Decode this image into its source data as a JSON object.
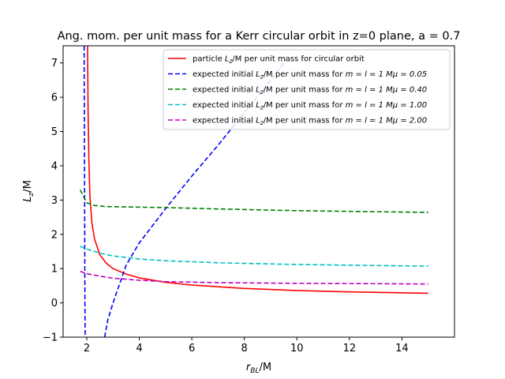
{
  "chart_data": {
    "type": "line",
    "title": "Ang. mom. per unit mass for a Kerr circular orbit in z=0 plane, a = 0.7",
    "xlabel": "r_BL/M",
    "ylabel": "L_z/M",
    "xlim": [
      1.1,
      16.0
    ],
    "ylim": [
      -1.0,
      7.5
    ],
    "xticks": [
      2,
      4,
      6,
      8,
      10,
      12,
      14
    ],
    "yticks": [
      -1,
      0,
      1,
      2,
      3,
      4,
      5,
      6,
      7
    ],
    "grid": false,
    "legend_position": "upper right",
    "series": [
      {
        "name": "particle L_z/M per unit mass for circular orbit",
        "color": "#ff0000",
        "style": "solid",
        "x": [
          2.03,
          2.05,
          2.08,
          2.12,
          2.2,
          2.3,
          2.5,
          2.75,
          3.0,
          3.5,
          4.0,
          5.0,
          6.0,
          8.0,
          10.0,
          12.0,
          15.0
        ],
        "y": [
          7.5,
          5.6,
          4.2,
          3.1,
          2.3,
          1.85,
          1.4,
          1.15,
          1.0,
          0.84,
          0.73,
          0.6,
          0.52,
          0.42,
          0.36,
          0.32,
          0.28
        ]
      },
      {
        "name": "expected initial L_z/M per unit mass for m = l = 1 Mμ = 0.05",
        "color": "#0000ff",
        "style": "dashed",
        "x": [
          1.9,
          1.91,
          1.92,
          1.93,
          1.94,
          null,
          2.68,
          2.8,
          3.0,
          3.5,
          4.0,
          5.0,
          6.0,
          7.0,
          8.0,
          9.0,
          9.6
        ],
        "y": [
          7.5,
          5.0,
          2.5,
          0.0,
          -1.0,
          null,
          -1.0,
          -0.5,
          0.0,
          1.1,
          1.75,
          2.75,
          3.7,
          4.6,
          5.55,
          6.5,
          7.1
        ]
      },
      {
        "name": "expected initial L_z/M per unit mass for m = l = 1 Mμ = 0.40",
        "color": "#008000",
        "style": "dashed",
        "x": [
          1.75,
          2.0,
          2.3,
          2.7,
          3.5,
          5.0,
          7.0,
          10.0,
          13.0,
          15.0
        ],
        "y": [
          3.3,
          2.92,
          2.84,
          2.81,
          2.8,
          2.78,
          2.74,
          2.69,
          2.66,
          2.64
        ]
      },
      {
        "name": "expected initial L_z/M per unit mass for m = l = 1 Mμ = 1.00",
        "color": "#00bfbf",
        "style": "dashed",
        "x": [
          1.75,
          2.0,
          2.5,
          3.0,
          4.0,
          5.0,
          7.0,
          10.0,
          13.0,
          15.0
        ],
        "y": [
          1.65,
          1.57,
          1.45,
          1.37,
          1.28,
          1.23,
          1.17,
          1.12,
          1.09,
          1.07
        ]
      },
      {
        "name": "expected initial L_z/M per unit mass for m = l = 1 Mμ = 2.00",
        "color": "#bf00bf",
        "style": "dashed",
        "x": [
          1.75,
          2.0,
          2.5,
          3.0,
          4.0,
          5.0,
          7.0,
          10.0,
          13.0,
          15.0
        ],
        "y": [
          0.92,
          0.85,
          0.78,
          0.72,
          0.66,
          0.62,
          0.59,
          0.57,
          0.56,
          0.55
        ]
      }
    ]
  },
  "legend": [
    {
      "prefix": "particle ",
      "var": "L",
      "sub": "z",
      "suffix": "/M per unit mass for circular orbit",
      "param": ""
    },
    {
      "prefix": "expected initial ",
      "var": "L",
      "sub": "z",
      "suffix": "/M per unit mass for ",
      "param": "m = l = 1  Mμ = 0.05"
    },
    {
      "prefix": "expected initial ",
      "var": "L",
      "sub": "z",
      "suffix": "/M per unit mass for ",
      "param": "m = l = 1  Mμ = 0.40"
    },
    {
      "prefix": "expected initial ",
      "var": "L",
      "sub": "z",
      "suffix": "/M per unit mass for ",
      "param": "m = l = 1  Mμ = 1.00"
    },
    {
      "prefix": "expected initial ",
      "var": "L",
      "sub": "z",
      "suffix": "/M per unit mass for ",
      "param": "m = l = 1  Mμ = 2.00"
    }
  ],
  "axis_text": {
    "x_var": "r",
    "x_sub": "BL",
    "x_rest": "/M",
    "y_var": "L",
    "y_sub": "z",
    "y_rest": "/M"
  }
}
